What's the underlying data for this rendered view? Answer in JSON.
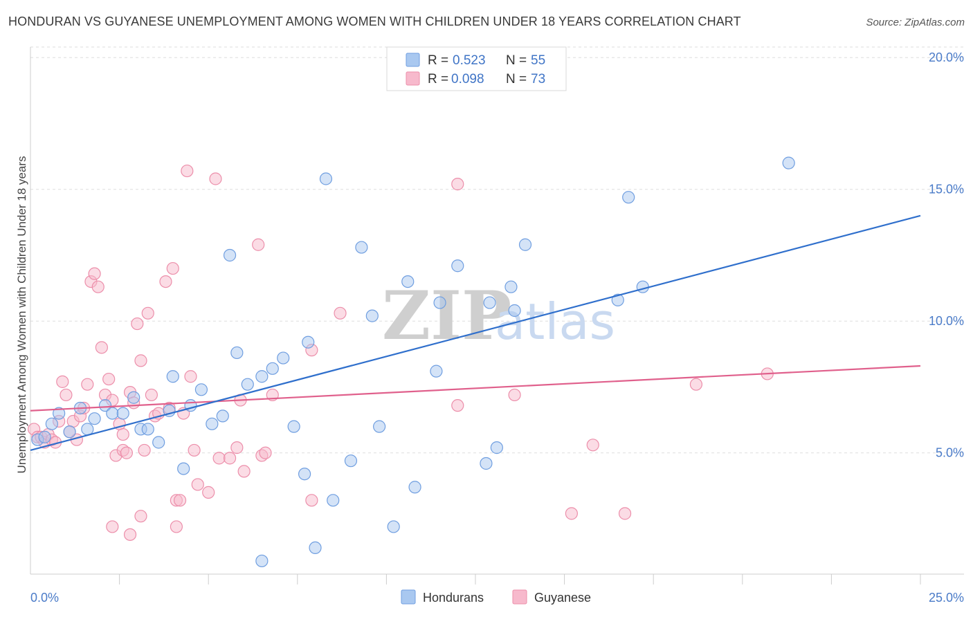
{
  "title": "HONDURAN VS GUYANESE UNEMPLOYMENT AMONG WOMEN WITH CHILDREN UNDER 18 YEARS CORRELATION CHART",
  "source": "Source: ZipAtlas.com",
  "watermark": {
    "zip": "ZIP",
    "atlas": "atlas"
  },
  "legend_top": {
    "r_label": "R =",
    "n_label": "N =",
    "rows": [
      {
        "series": "Hondurans",
        "r": "0.523",
        "n": "55"
      },
      {
        "series": "Guyanese",
        "r": "0.098",
        "n": "73"
      }
    ]
  },
  "colors": {
    "hondurans_fill": "#a9c8f0",
    "hondurans_stroke": "#6f9ee0",
    "hondurans_line": "#2f6fcc",
    "guyanese_fill": "#f7b9cc",
    "guyanese_stroke": "#ec8eaa",
    "guyanese_line": "#e0608c",
    "tick_text": "#4a7bc8",
    "grid": "#dddddd"
  },
  "chart_data": {
    "type": "scatter",
    "title": "HONDURAN VS GUYANESE UNEMPLOYMENT AMONG WOMEN WITH CHILDREN UNDER 18 YEARS CORRELATION CHART",
    "xlabel": "",
    "ylabel": "Unemployment Among Women with Children Under 18 years",
    "xlim": [
      0,
      25
    ],
    "ylim": [
      0.4,
      20.4
    ],
    "x_tick_labels": [
      "0.0%",
      "25.0%"
    ],
    "y_ticks": [
      5,
      10,
      15,
      20
    ],
    "y_tick_labels": [
      "5.0%",
      "10.0%",
      "15.0%",
      "20.0%"
    ],
    "grid": "horizontal dashed",
    "legend_position": "top-center",
    "series": [
      {
        "name": "Hondurans",
        "trend": {
          "x": [
            0,
            25
          ],
          "y": [
            5.1,
            14.0
          ]
        },
        "points": [
          [
            0.2,
            5.5
          ],
          [
            0.4,
            5.6
          ],
          [
            0.6,
            6.1
          ],
          [
            0.8,
            6.5
          ],
          [
            1.1,
            5.8
          ],
          [
            1.4,
            6.7
          ],
          [
            1.6,
            5.9
          ],
          [
            1.8,
            6.3
          ],
          [
            2.1,
            6.8
          ],
          [
            2.3,
            6.5
          ],
          [
            2.6,
            6.5
          ],
          [
            2.9,
            7.1
          ],
          [
            3.1,
            5.9
          ],
          [
            3.3,
            5.9
          ],
          [
            3.6,
            5.4
          ],
          [
            3.9,
            6.6
          ],
          [
            4.0,
            7.9
          ],
          [
            4.3,
            4.4
          ],
          [
            4.5,
            6.8
          ],
          [
            4.8,
            7.4
          ],
          [
            5.1,
            6.1
          ],
          [
            5.4,
            6.4
          ],
          [
            5.6,
            12.5
          ],
          [
            5.8,
            8.8
          ],
          [
            6.1,
            7.6
          ],
          [
            6.5,
            7.9
          ],
          [
            6.8,
            8.2
          ],
          [
            7.1,
            8.6
          ],
          [
            7.4,
            6.0
          ],
          [
            7.7,
            4.2
          ],
          [
            7.8,
            9.2
          ],
          [
            8.0,
            1.4
          ],
          [
            6.5,
            0.9
          ],
          [
            8.3,
            15.4
          ],
          [
            8.5,
            3.2
          ],
          [
            9.0,
            4.7
          ],
          [
            9.3,
            12.8
          ],
          [
            9.6,
            10.2
          ],
          [
            9.8,
            6.0
          ],
          [
            10.2,
            2.2
          ],
          [
            10.6,
            11.5
          ],
          [
            10.8,
            3.7
          ],
          [
            11.4,
            8.1
          ],
          [
            11.5,
            10.7
          ],
          [
            12.0,
            12.1
          ],
          [
            12.8,
            4.6
          ],
          [
            12.9,
            10.7
          ],
          [
            13.1,
            5.2
          ],
          [
            13.5,
            11.3
          ],
          [
            13.6,
            10.4
          ],
          [
            13.9,
            12.9
          ],
          [
            16.5,
            10.8
          ],
          [
            16.8,
            14.7
          ],
          [
            17.2,
            11.3
          ],
          [
            21.3,
            16.0
          ]
        ]
      },
      {
        "name": "Guyanese",
        "trend": {
          "x": [
            0,
            25
          ],
          "y": [
            6.6,
            8.3
          ]
        },
        "points": [
          [
            0.1,
            5.9
          ],
          [
            0.2,
            5.6
          ],
          [
            0.3,
            5.6
          ],
          [
            0.4,
            5.4
          ],
          [
            0.5,
            5.7
          ],
          [
            0.6,
            5.5
          ],
          [
            0.7,
            5.4
          ],
          [
            0.8,
            6.2
          ],
          [
            0.9,
            7.7
          ],
          [
            1.0,
            7.2
          ],
          [
            1.1,
            5.8
          ],
          [
            1.2,
            6.2
          ],
          [
            1.3,
            5.5
          ],
          [
            1.4,
            6.4
          ],
          [
            1.5,
            6.7
          ],
          [
            1.6,
            7.6
          ],
          [
            1.7,
            11.5
          ],
          [
            1.8,
            11.8
          ],
          [
            1.9,
            11.3
          ],
          [
            2.0,
            9.0
          ],
          [
            2.1,
            7.2
          ],
          [
            2.2,
            7.8
          ],
          [
            2.3,
            7.0
          ],
          [
            2.3,
            2.2
          ],
          [
            2.4,
            4.9
          ],
          [
            2.5,
            6.1
          ],
          [
            2.6,
            5.7
          ],
          [
            2.6,
            5.1
          ],
          [
            2.7,
            5.0
          ],
          [
            2.8,
            7.3
          ],
          [
            2.8,
            1.9
          ],
          [
            2.9,
            6.9
          ],
          [
            3.0,
            9.9
          ],
          [
            3.1,
            8.5
          ],
          [
            3.1,
            2.6
          ],
          [
            3.2,
            5.1
          ],
          [
            3.3,
            10.3
          ],
          [
            3.4,
            7.2
          ],
          [
            3.5,
            6.4
          ],
          [
            3.6,
            6.5
          ],
          [
            3.8,
            11.5
          ],
          [
            3.9,
            6.7
          ],
          [
            4.0,
            12.0
          ],
          [
            4.1,
            2.2
          ],
          [
            4.1,
            3.2
          ],
          [
            4.2,
            3.2
          ],
          [
            4.3,
            6.5
          ],
          [
            4.4,
            15.7
          ],
          [
            4.5,
            7.9
          ],
          [
            4.6,
            5.1
          ],
          [
            4.7,
            3.8
          ],
          [
            5.0,
            3.5
          ],
          [
            5.2,
            15.4
          ],
          [
            5.3,
            4.8
          ],
          [
            5.6,
            4.8
          ],
          [
            5.8,
            5.2
          ],
          [
            5.9,
            7.0
          ],
          [
            6.0,
            4.3
          ],
          [
            6.4,
            12.9
          ],
          [
            6.5,
            4.9
          ],
          [
            6.6,
            5.0
          ],
          [
            6.8,
            7.2
          ],
          [
            7.9,
            3.2
          ],
          [
            7.9,
            8.9
          ],
          [
            8.7,
            10.3
          ],
          [
            12.0,
            15.2
          ],
          [
            12.0,
            6.8
          ],
          [
            13.6,
            7.2
          ],
          [
            15.2,
            2.7
          ],
          [
            15.8,
            5.3
          ],
          [
            16.7,
            2.7
          ],
          [
            18.7,
            7.6
          ],
          [
            20.7,
            8.0
          ]
        ]
      }
    ]
  }
}
